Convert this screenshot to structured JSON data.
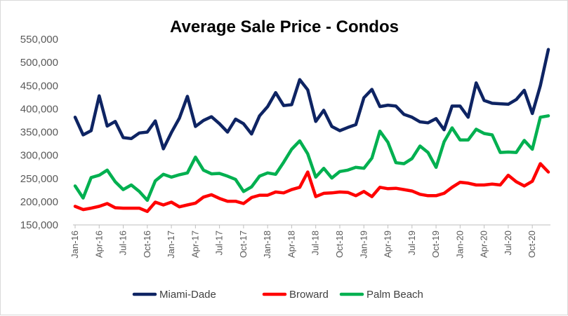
{
  "chart_data": {
    "type": "line",
    "title": "Average Sale Price - Condos",
    "xlabel": "",
    "ylabel": "",
    "ylim": [
      150000,
      550000
    ],
    "yticks": [
      "150,000",
      "200,000",
      "250,000",
      "300,000",
      "350,000",
      "400,000",
      "450,000",
      "500,000",
      "550,000"
    ],
    "ytick_values": [
      150000,
      200000,
      250000,
      300000,
      350000,
      400000,
      450000,
      500000,
      550000
    ],
    "x": [
      "Jan-16",
      "Feb-16",
      "Mar-16",
      "Apr-16",
      "May-16",
      "Jun-16",
      "Jul-16",
      "Aug-16",
      "Sep-16",
      "Oct-16",
      "Nov-16",
      "Dec-16",
      "Jan-17",
      "Feb-17",
      "Mar-17",
      "Apr-17",
      "May-17",
      "Jun-17",
      "Jul-17",
      "Aug-17",
      "Sep-17",
      "Oct-17",
      "Nov-17",
      "Dec-17",
      "Jan-18",
      "Feb-18",
      "Mar-18",
      "Apr-18",
      "May-18",
      "Jun-18",
      "Jul-18",
      "Aug-18",
      "Sep-18",
      "Oct-18",
      "Nov-18",
      "Dec-18",
      "Jan-19",
      "Feb-19",
      "Mar-19",
      "Apr-19",
      "May-19",
      "Jun-19",
      "Jul-19",
      "Aug-19",
      "Sep-19",
      "Oct-19",
      "Nov-19",
      "Dec-19",
      "Jan-20",
      "Feb-20",
      "Mar-20",
      "Apr-20",
      "May-20",
      "Jun-20",
      "Jul-20",
      "Aug-20",
      "Sep-20",
      "Oct-20",
      "Nov-20",
      "Dec-20"
    ],
    "xtick_labels": [
      {
        "index": 0,
        "label": "Jan-16"
      },
      {
        "index": 3,
        "label": "Apr-16"
      },
      {
        "index": 6,
        "label": "Jul-16"
      },
      {
        "index": 9,
        "label": "Oct-16"
      },
      {
        "index": 12,
        "label": "Jan-17"
      },
      {
        "index": 15,
        "label": "Apr-17"
      },
      {
        "index": 18,
        "label": "Jul-17"
      },
      {
        "index": 21,
        "label": "Oct-17"
      },
      {
        "index": 24,
        "label": "Jan-18"
      },
      {
        "index": 27,
        "label": "Apr-18"
      },
      {
        "index": 30,
        "label": "Jul-18"
      },
      {
        "index": 33,
        "label": "Oct-18"
      },
      {
        "index": 36,
        "label": "Jan-19"
      },
      {
        "index": 39,
        "label": "Apr-19"
      },
      {
        "index": 42,
        "label": "Jul-19"
      },
      {
        "index": 45,
        "label": "Oct-19"
      },
      {
        "index": 48,
        "label": "Jan-20"
      },
      {
        "index": 51,
        "label": "Apr-20"
      },
      {
        "index": 54,
        "label": "Jul-20"
      },
      {
        "index": 57,
        "label": "Oct-20"
      }
    ],
    "grid": false,
    "legend_position": "bottom",
    "series": [
      {
        "name": "Miami-Dade",
        "color": "#0e2463",
        "values": [
          382000,
          344000,
          353000,
          428000,
          363000,
          373000,
          338000,
          336000,
          348000,
          350000,
          374000,
          314000,
          349000,
          380000,
          427000,
          362000,
          375000,
          383000,
          368000,
          350000,
          378000,
          368000,
          346000,
          385000,
          405000,
          435000,
          407000,
          409000,
          463000,
          441000,
          373000,
          397000,
          362000,
          353000,
          360000,
          366000,
          424000,
          442000,
          405000,
          408000,
          406000,
          388000,
          382000,
          372000,
          370000,
          379000,
          355000,
          406000,
          406000,
          382000,
          456000,
          418000,
          412000,
          411000,
          410000,
          420000,
          440000,
          390000,
          450000,
          528000
        ]
      },
      {
        "name": "Broward",
        "color": "#ff0000",
        "values": [
          190000,
          183000,
          186000,
          190000,
          196000,
          187000,
          186000,
          186000,
          186000,
          179000,
          199000,
          193000,
          199000,
          189000,
          193000,
          197000,
          210000,
          215000,
          207000,
          201000,
          201000,
          196000,
          209000,
          214000,
          214000,
          221000,
          219000,
          226000,
          231000,
          264000,
          211000,
          218000,
          219000,
          221000,
          220000,
          213000,
          222000,
          211000,
          231000,
          228000,
          229000,
          226000,
          223000,
          216000,
          213000,
          213000,
          218000,
          231000,
          242000,
          240000,
          236000,
          236000,
          238000,
          236000,
          257000,
          243000,
          234000,
          244000,
          282000,
          264000
        ]
      },
      {
        "name": "Palm Beach",
        "color": "#00b050",
        "values": [
          234000,
          208000,
          252000,
          257000,
          268000,
          243000,
          226000,
          236000,
          222000,
          203000,
          245000,
          259000,
          253000,
          258000,
          262000,
          296000,
          268000,
          260000,
          261000,
          255000,
          248000,
          222000,
          232000,
          255000,
          262000,
          259000,
          285000,
          313000,
          331000,
          303000,
          253000,
          272000,
          251000,
          265000,
          268000,
          274000,
          272000,
          294000,
          352000,
          328000,
          284000,
          282000,
          293000,
          320000,
          306000,
          274000,
          329000,
          359000,
          333000,
          333000,
          356000,
          347000,
          344000,
          306000,
          307000,
          306000,
          332000,
          313000,
          382000,
          385000
        ]
      }
    ]
  }
}
